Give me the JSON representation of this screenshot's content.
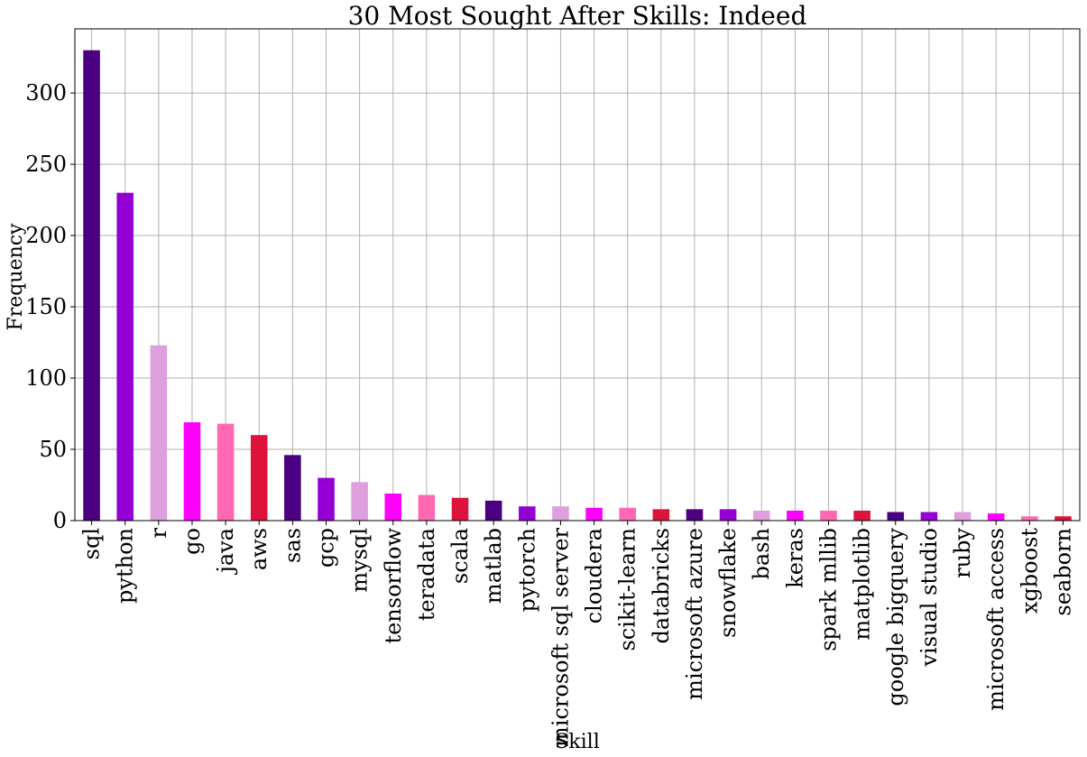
{
  "chart_data": {
    "type": "bar",
    "title": "30 Most Sought After Skills: Indeed",
    "xlabel": "Skill",
    "ylabel": "Frequency",
    "ylim": [
      0,
      345
    ],
    "yticks": [
      0,
      50,
      100,
      150,
      200,
      250,
      300
    ],
    "grid": true,
    "categories": [
      "sql",
      "python",
      "r",
      "go",
      "java",
      "aws",
      "sas",
      "gcp",
      "mysql",
      "tensorflow",
      "teradata",
      "scala",
      "matlab",
      "pytorch",
      "microsoft sql server",
      "cloudera",
      "scikit-learn",
      "databricks",
      "microsoft azure",
      "snowflake",
      "bash",
      "keras",
      "spark mllib",
      "matplotlib",
      "google bigquery",
      "visual studio",
      "ruby",
      "microsoft access",
      "xgboost",
      "seaborn"
    ],
    "values": [
      330,
      230,
      123,
      69,
      68,
      60,
      46,
      30,
      27,
      19,
      18,
      16,
      14,
      10,
      10,
      9,
      9,
      8,
      8,
      8,
      7,
      7,
      7,
      7,
      6,
      6,
      6,
      5,
      3,
      3
    ],
    "colors": [
      "#4b0082",
      "#9400d3",
      "#dda0dd",
      "#ff00ff",
      "#ff69b4",
      "#dc143c"
    ]
  }
}
